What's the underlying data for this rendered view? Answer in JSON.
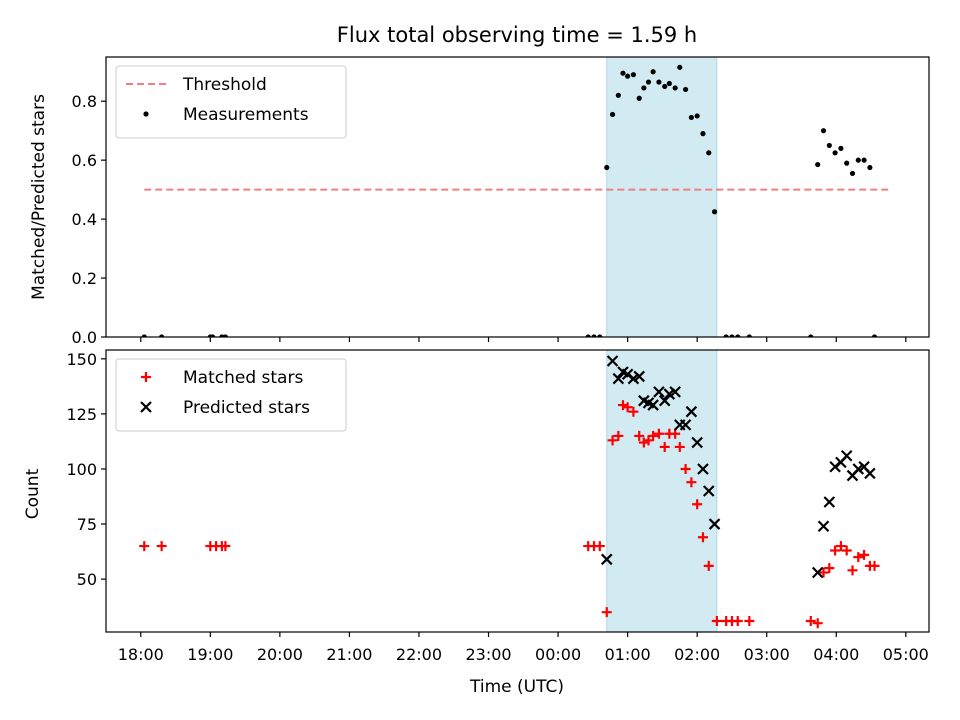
{
  "chart_data": [
    {
      "type": "scatter",
      "title": "Flux total observing time = 1.59 h",
      "xlabel": "",
      "ylabel": "Matched/Predicted stars",
      "xlim": [
        "17:30",
        "05:20"
      ],
      "ylim": [
        0,
        0.95
      ],
      "yticks": [
        "0.0",
        "0.2",
        "0.4",
        "0.6",
        "0.8"
      ],
      "legend": "top-left",
      "shaded_interval": {
        "from": "00:42",
        "to": "02:17",
        "color": "#add8e6"
      },
      "threshold": {
        "name": "Threshold",
        "value": 0.5,
        "from": "18:03",
        "to": "04:45",
        "color": "#f08080",
        "style": "dashed"
      },
      "series": [
        {
          "name": "Measurements",
          "color": "#000000",
          "marker": "dot",
          "points": [
            [
              "18:03",
              0
            ],
            [
              "18:18",
              0
            ],
            [
              "19:00",
              0
            ],
            [
              "19:02",
              0
            ],
            [
              "19:10",
              0
            ],
            [
              "19:13",
              0
            ],
            [
              "00:26",
              0
            ],
            [
              "00:31",
              0
            ],
            [
              "00:36",
              0
            ],
            [
              "00:42",
              0.575
            ],
            [
              "00:47",
              0.755
            ],
            [
              "00:52",
              0.82
            ],
            [
              "00:56",
              0.895
            ],
            [
              "01:00",
              0.885
            ],
            [
              "01:05",
              0.89
            ],
            [
              "01:10",
              0.81
            ],
            [
              "01:14",
              0.845
            ],
            [
              "01:18",
              0.865
            ],
            [
              "01:22",
              0.9
            ],
            [
              "01:27",
              0.865
            ],
            [
              "01:32",
              0.85
            ],
            [
              "01:36",
              0.86
            ],
            [
              "01:41",
              0.845
            ],
            [
              "01:45",
              0.915
            ],
            [
              "01:50",
              0.84
            ],
            [
              "01:55",
              0.745
            ],
            [
              "02:00",
              0.75
            ],
            [
              "02:05",
              0.69
            ],
            [
              "02:10",
              0.625
            ],
            [
              "02:15",
              0.425
            ],
            [
              "02:25",
              0
            ],
            [
              "02:30",
              0
            ],
            [
              "02:35",
              0
            ],
            [
              "02:45",
              0
            ],
            [
              "03:38",
              0
            ],
            [
              "03:44",
              0.585
            ],
            [
              "03:49",
              0.7
            ],
            [
              "03:54",
              0.65
            ],
            [
              "03:59",
              0.625
            ],
            [
              "04:04",
              0.64
            ],
            [
              "04:09",
              0.59
            ],
            [
              "04:14",
              0.555
            ],
            [
              "04:19",
              0.6
            ],
            [
              "04:24",
              0.6
            ],
            [
              "04:29",
              0.575
            ],
            [
              "04:33",
              0
            ]
          ]
        }
      ]
    },
    {
      "type": "scatter",
      "title": "",
      "xlabel": "Time (UTC)",
      "ylabel": "Count",
      "xlim": [
        "17:30",
        "05:20"
      ],
      "ylim": [
        26,
        154
      ],
      "yticks": [
        "50",
        "75",
        "100",
        "125",
        "150"
      ],
      "xticks": [
        "18:00",
        "19:00",
        "20:00",
        "21:00",
        "22:00",
        "23:00",
        "00:00",
        "01:00",
        "02:00",
        "03:00",
        "04:00",
        "05:00"
      ],
      "legend": "top-left",
      "shaded_interval": {
        "from": "00:42",
        "to": "02:17",
        "color": "#add8e6"
      },
      "series": [
        {
          "name": "Matched stars",
          "color": "#ff0000",
          "marker": "plus",
          "points": [
            [
              "18:03",
              65
            ],
            [
              "18:18",
              65
            ],
            [
              "19:00",
              65
            ],
            [
              "19:05",
              65
            ],
            [
              "19:10",
              65
            ],
            [
              "19:13",
              65
            ],
            [
              "00:26",
              65
            ],
            [
              "00:31",
              65
            ],
            [
              "00:36",
              65
            ],
            [
              "00:42",
              35
            ],
            [
              "00:47",
              113
            ],
            [
              "00:52",
              115
            ],
            [
              "00:56",
              129
            ],
            [
              "01:00",
              128
            ],
            [
              "01:05",
              126
            ],
            [
              "01:10",
              115
            ],
            [
              "01:14",
              112
            ],
            [
              "01:18",
              113
            ],
            [
              "01:22",
              115
            ],
            [
              "01:27",
              116
            ],
            [
              "01:32",
              110
            ],
            [
              "01:36",
              116
            ],
            [
              "01:41",
              116
            ],
            [
              "01:45",
              110
            ],
            [
              "01:50",
              100
            ],
            [
              "01:55",
              94
            ],
            [
              "02:00",
              84
            ],
            [
              "02:05",
              69
            ],
            [
              "02:10",
              56
            ],
            [
              "02:17",
              31
            ],
            [
              "02:25",
              31
            ],
            [
              "02:30",
              31
            ],
            [
              "02:35",
              31
            ],
            [
              "02:45",
              31
            ],
            [
              "03:38",
              31
            ],
            [
              "03:44",
              30
            ],
            [
              "03:49",
              53
            ],
            [
              "03:54",
              55
            ],
            [
              "03:59",
              63
            ],
            [
              "04:04",
              65
            ],
            [
              "04:09",
              63
            ],
            [
              "04:14",
              54
            ],
            [
              "04:19",
              60
            ],
            [
              "04:24",
              61
            ],
            [
              "04:29",
              56
            ],
            [
              "04:33",
              56
            ]
          ]
        },
        {
          "name": "Predicted stars",
          "color": "#000000",
          "marker": "x",
          "points": [
            [
              "00:42",
              59
            ],
            [
              "00:47",
              149
            ],
            [
              "00:52",
              141
            ],
            [
              "00:56",
              144
            ],
            [
              "01:00",
              143
            ],
            [
              "01:05",
              141
            ],
            [
              "01:10",
              142
            ],
            [
              "01:14",
              131
            ],
            [
              "01:18",
              130
            ],
            [
              "01:22",
              129
            ],
            [
              "01:27",
              135
            ],
            [
              "01:32",
              131
            ],
            [
              "01:36",
              134
            ],
            [
              "01:41",
              135
            ],
            [
              "01:45",
              120
            ],
            [
              "01:50",
              120
            ],
            [
              "01:55",
              126
            ],
            [
              "02:00",
              112
            ],
            [
              "02:05",
              100
            ],
            [
              "02:10",
              90
            ],
            [
              "02:15",
              75
            ],
            [
              "03:44",
              53
            ],
            [
              "03:49",
              74
            ],
            [
              "03:54",
              85
            ],
            [
              "03:59",
              101
            ],
            [
              "04:04",
              103
            ],
            [
              "04:09",
              106
            ],
            [
              "04:14",
              97
            ],
            [
              "04:19",
              100
            ],
            [
              "04:24",
              101
            ],
            [
              "04:29",
              98
            ]
          ]
        }
      ]
    }
  ]
}
